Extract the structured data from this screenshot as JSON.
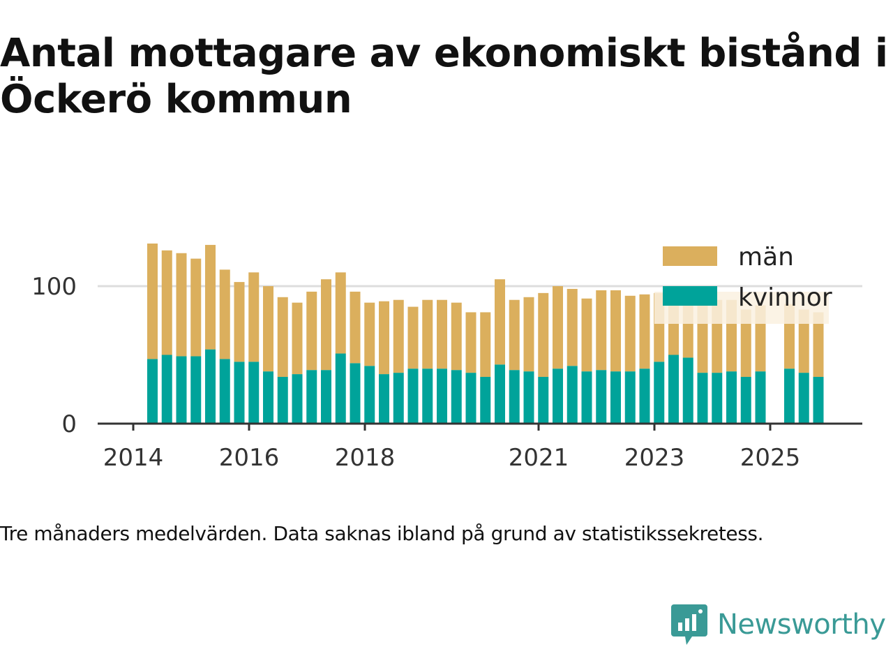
{
  "title": "Antal mottagare av ekonomiskt bistånd i Öckerö kommun",
  "caption": "Tre månaders medelvärden. Data saknas ibland på grund av statistikssekretess.",
  "brand": {
    "name": "Newsworthy",
    "color": "#3a9a96",
    "icon": "chart-bubble-icon"
  },
  "colors": {
    "man": "#dbaf5d",
    "kvinnor": "#00a39a",
    "grid": "#dddddd",
    "axis": "#333333",
    "highlight": "#faf1e1"
  },
  "chart_data": {
    "type": "bar",
    "stacked": true,
    "grid": true,
    "legend_position": "top-right",
    "ylim": [
      0,
      130
    ],
    "yticks": [
      0,
      100
    ],
    "xticks": [
      "2014",
      "2016",
      "2018",
      "2021",
      "2023",
      "2025"
    ],
    "categories": [
      "2014-Q2",
      "2014-Q3",
      "2014-Q4",
      "2015-Q1",
      "2015-Q2",
      "2015-Q3",
      "2015-Q4",
      "2016-Q1",
      "2016-Q2",
      "2016-Q3",
      "2016-Q4",
      "2017-Q1",
      "2017-Q2",
      "2017-Q3",
      "2017-Q4",
      "2018-Q1",
      "2018-Q2",
      "2018-Q3",
      "2018-Q4",
      "2019-Q1",
      "2019-Q2",
      "2019-Q3",
      "2019-Q4",
      "2020-Q1",
      "2020-Q2",
      "2020-Q3",
      "2020-Q4",
      "2021-Q1",
      "2021-Q2",
      "2021-Q3",
      "2021-Q4",
      "2022-Q1",
      "2022-Q2",
      "2022-Q3",
      "2022-Q4",
      "2023-Q1",
      "2023-Q2",
      "2023-Q3",
      "2023-Q4",
      "2024-Q1",
      "2024-Q2",
      "2024-Q3",
      "2024-Q4",
      "2025-Q1",
      "2025-Q2",
      "2025-Q3",
      "2025-Q4"
    ],
    "series": [
      {
        "name": "kvinnor",
        "values": [
          47,
          50,
          49,
          49,
          54,
          47,
          45,
          45,
          38,
          34,
          36,
          39,
          39,
          51,
          44,
          42,
          36,
          37,
          40,
          40,
          40,
          39,
          37,
          34,
          43,
          39,
          38,
          34,
          40,
          42,
          38,
          39,
          38,
          38,
          40,
          45,
          50,
          48,
          37,
          37,
          38,
          34,
          38,
          null,
          40,
          37,
          34
        ]
      },
      {
        "name": "män",
        "values": [
          84,
          76,
          75,
          71,
          76,
          65,
          58,
          65,
          62,
          58,
          52,
          57,
          66,
          59,
          52,
          46,
          53,
          53,
          45,
          50,
          50,
          49,
          44,
          47,
          62,
          51,
          54,
          61,
          60,
          56,
          53,
          58,
          59,
          55,
          54,
          50,
          45,
          40,
          53,
          53,
          52,
          49,
          48,
          null,
          47,
          46,
          47
        ]
      }
    ],
    "highlight_series": {
      "name": "män",
      "note": "lighter shaded bars behind the legend area"
    }
  }
}
